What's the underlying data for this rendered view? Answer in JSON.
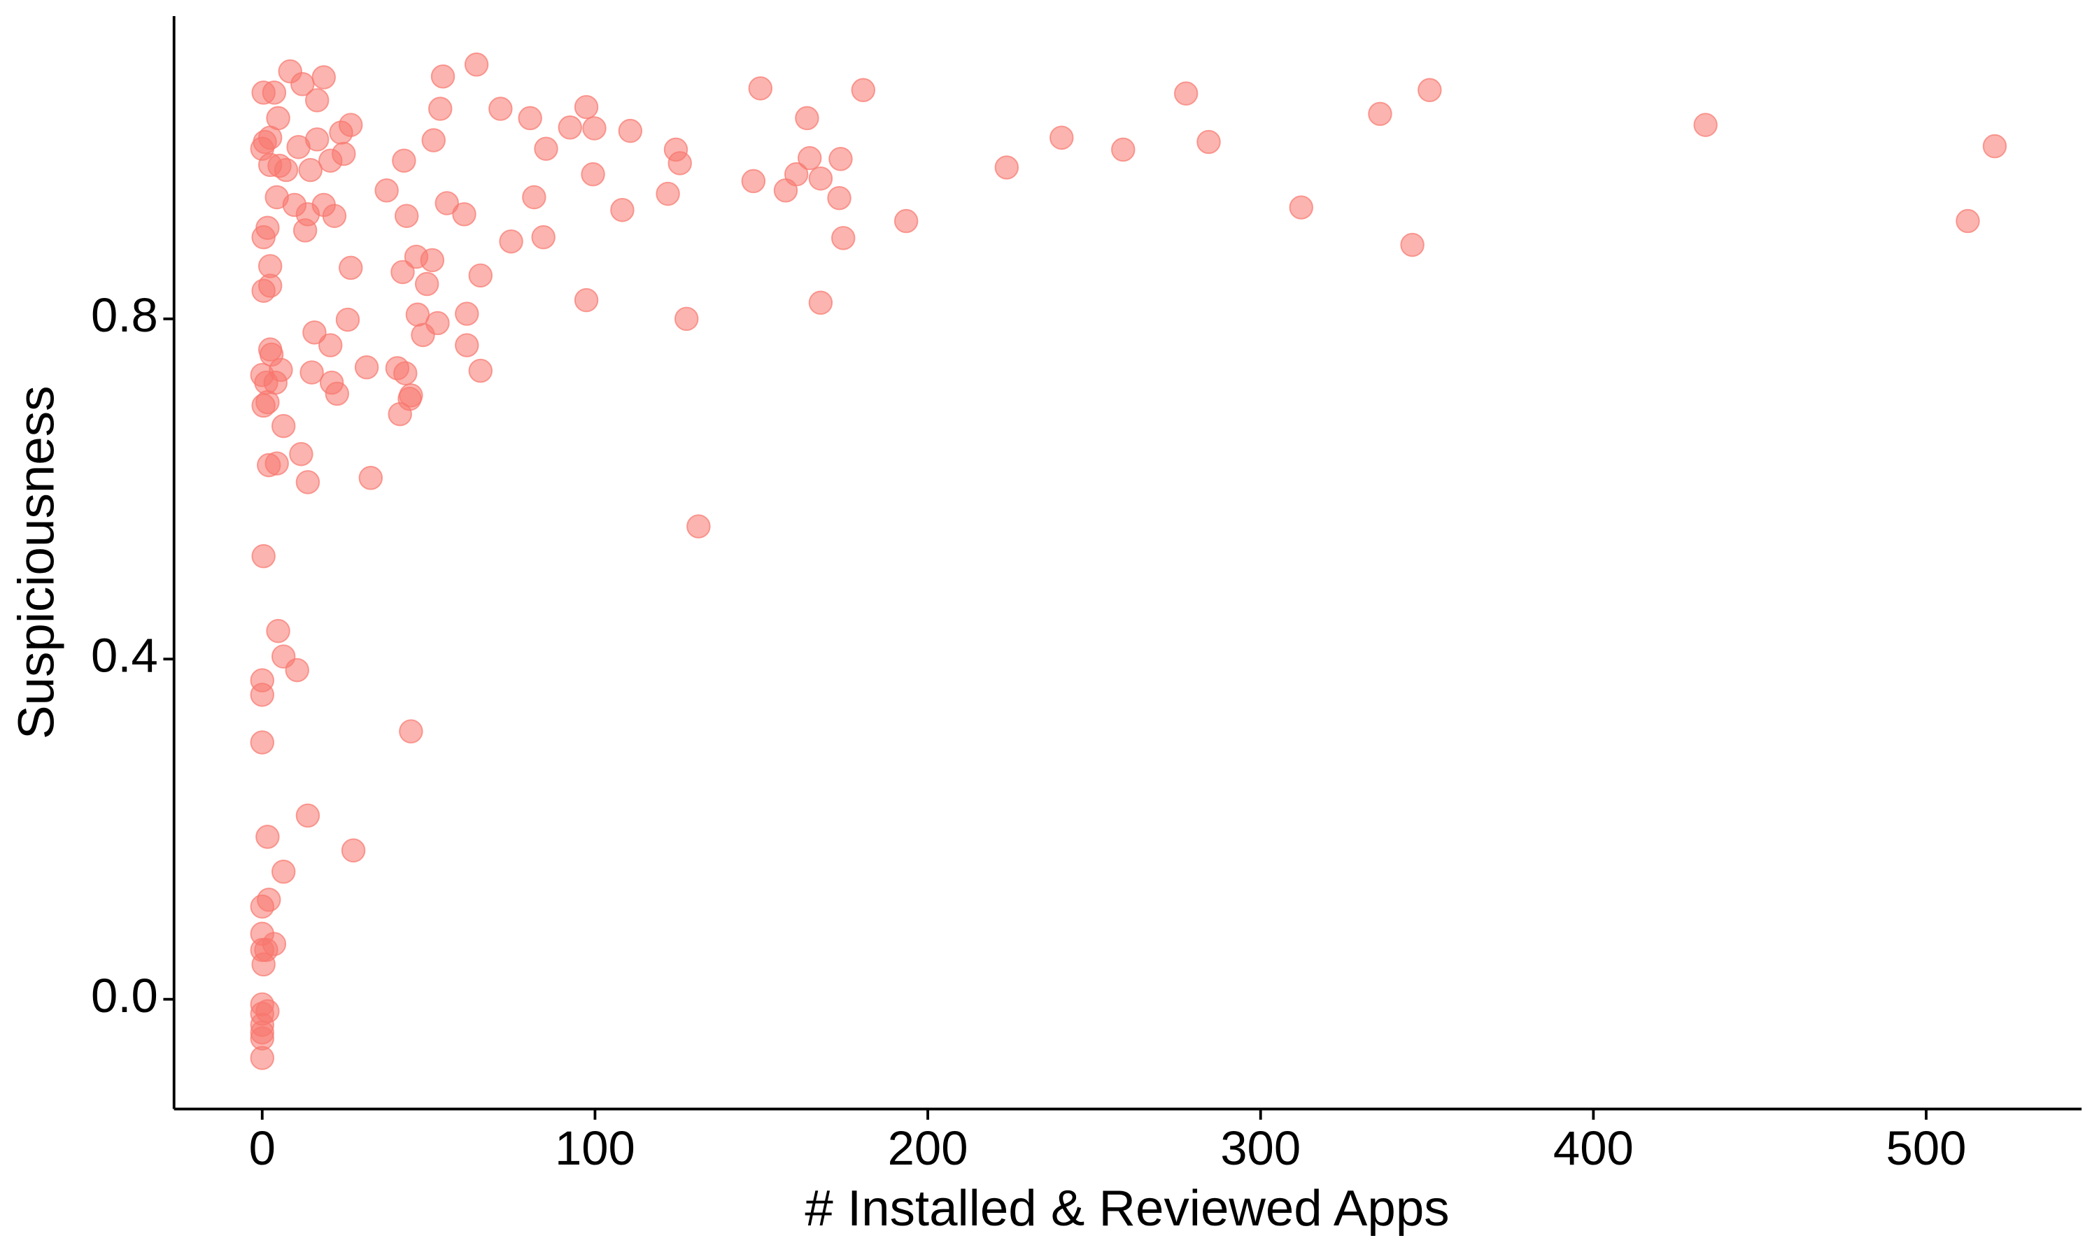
{
  "chart_data": {
    "type": "scatter",
    "xlabel": "# Installed & Reviewed Apps",
    "ylabel": "Suspiciousness",
    "color": "#F8766D",
    "xlim": [
      -26.5,
      546.7
    ],
    "ylim": [
      -0.129,
      1.156
    ],
    "xticks": [
      0,
      100,
      200,
      300,
      400,
      500
    ],
    "yticks": [
      {
        "value": 0,
        "label": "0.0"
      },
      0.4,
      0.8
    ],
    "grid": false,
    "x": [
      8.4,
      18.5,
      54.3,
      64.4,
      0.4,
      3.6,
      12.1,
      16.5,
      149.7,
      180.6,
      277.6,
      350.8,
      53.5,
      71.6,
      80.5,
      97.4,
      163.7,
      335.9,
      433.7,
      4.8,
      2.4,
      0.8,
      16.5,
      23.7,
      26.6,
      51.5,
      92.5,
      99.8,
      110.6,
      124.3,
      85.3,
      10.9,
      0,
      24.5,
      2.4,
      7.2,
      5.2,
      14.5,
      20.5,
      42.6,
      99.4,
      125.5,
      147.6,
      160.5,
      164.5,
      167.8,
      173.8,
      223.7,
      240.2,
      258.7,
      284.4,
      520.6,
      4.4,
      9.7,
      18.5,
      21.7,
      13.7,
      37.4,
      43.4,
      55.5,
      60.7,
      81.7,
      108.2,
      121.9,
      157.3,
      173.4,
      193.5,
      312.2,
      512.5,
      0.4,
      1.6,
      12.9,
      74.8,
      84.5,
      174.6,
      345.6,
      2.4,
      26.6,
      46.3,
      51.1,
      42.2,
      49.5,
      65.6,
      2.4,
      0.4,
      97.4,
      167.8,
      2.4,
      2.8,
      15.7,
      25.7,
      46.7,
      52.7,
      61.5,
      48.3,
      61.5,
      127.5,
      0,
      5.6,
      1.2,
      1.6,
      0.4,
      4.0,
      14.9,
      20.5,
      20.9,
      22.5,
      31.4,
      40.6,
      43.0,
      44.7,
      44.3,
      41.4,
      65.6,
      6.4,
      11.7,
      4.4,
      2.0,
      13.7,
      32.6,
      131.1,
      0.4,
      4.8,
      6.4,
      10.5,
      0,
      0,
      44.7,
      0,
      13.7,
      27.4,
      1.6,
      6.4,
      2.0,
      0,
      0,
      3.6,
      0,
      1.2,
      0.4,
      0,
      1.6,
      0,
      0,
      0,
      0,
      0
    ],
    "y": [
      1.091,
      1.084,
      1.085,
      1.099,
      1.066,
      1.066,
      1.076,
      1.057,
      1.071,
      1.069,
      1.065,
      1.069,
      1.047,
      1.047,
      1.036,
      1.049,
      1.036,
      1.041,
      1.028,
      1.036,
      1.013,
      1.008,
      1.011,
      1.019,
      1.028,
      1.01,
      1.025,
      1.024,
      1.021,
      0.999,
      1.0,
      1.002,
      1.0,
      0.994,
      0.981,
      0.975,
      0.98,
      0.975,
      0.986,
      0.986,
      0.97,
      0.983,
      0.962,
      0.97,
      0.989,
      0.965,
      0.988,
      0.978,
      1.013,
      0.999,
      1.008,
      1.003,
      0.943,
      0.934,
      0.934,
      0.921,
      0.923,
      0.951,
      0.921,
      0.936,
      0.923,
      0.943,
      0.928,
      0.947,
      0.951,
      0.942,
      0.915,
      0.931,
      0.915,
      0.896,
      0.907,
      0.904,
      0.891,
      0.896,
      0.895,
      0.887,
      0.862,
      0.86,
      0.873,
      0.869,
      0.855,
      0.841,
      0.851,
      0.839,
      0.833,
      0.822,
      0.819,
      0.764,
      0.758,
      0.784,
      0.799,
      0.805,
      0.795,
      0.806,
      0.781,
      0.769,
      0.8,
      0.734,
      0.74,
      0.725,
      0.702,
      0.698,
      0.725,
      0.737,
      0.769,
      0.725,
      0.712,
      0.743,
      0.742,
      0.736,
      0.71,
      0.706,
      0.688,
      0.739,
      0.674,
      0.641,
      0.63,
      0.628,
      0.608,
      0.613,
      0.556,
      0.521,
      0.433,
      0.403,
      0.387,
      0.375,
      0.358,
      0.315,
      0.302,
      0.216,
      0.175,
      0.191,
      0.15,
      0.117,
      0.109,
      0.077,
      0.065,
      0.058,
      0.058,
      0.041,
      -0.006,
      -0.014,
      -0.017,
      -0.03,
      -0.039,
      -0.046,
      -0.069
    ]
  }
}
